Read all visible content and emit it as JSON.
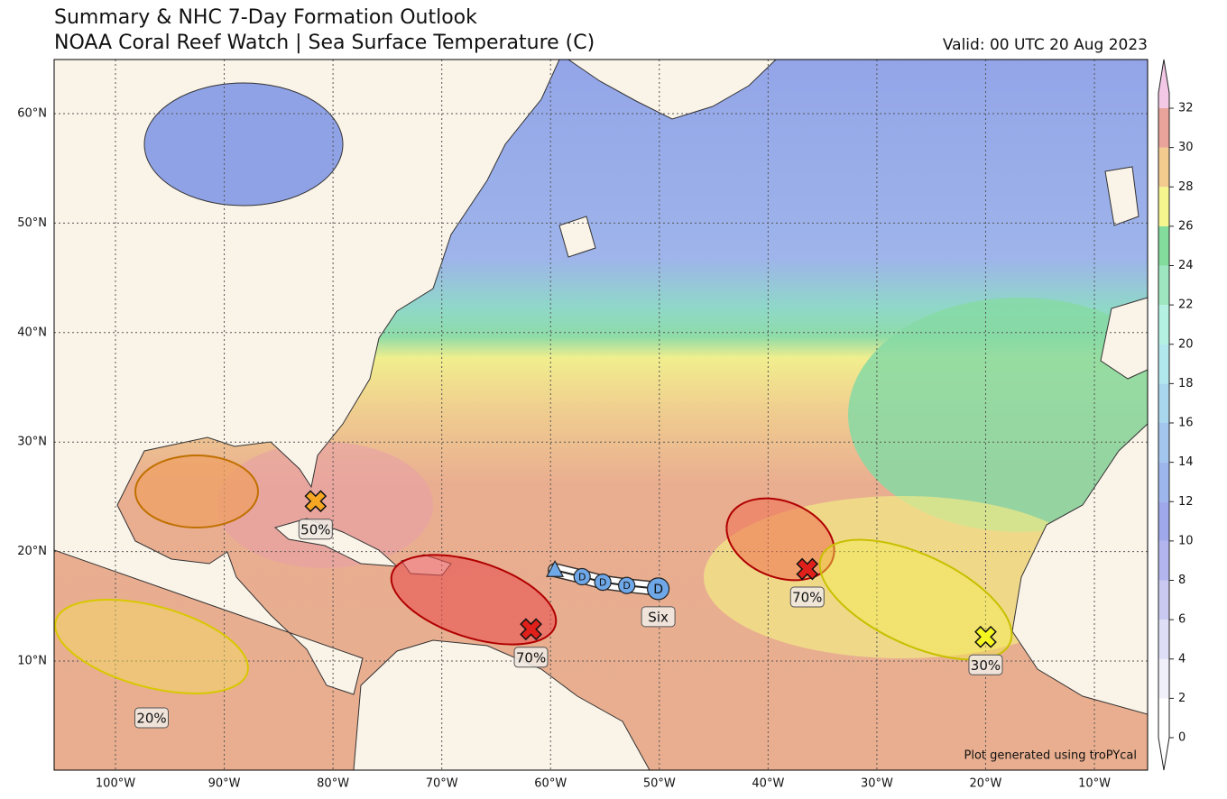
{
  "header": {
    "title": "Summary & NHC 7-Day Formation Outlook",
    "subtitle": "NOAA Coral Reef Watch | Sea Surface Temperature (C)",
    "valid": "Valid: 00 UTC 20 Aug 2023"
  },
  "map": {
    "lat_ticks": [
      {
        "value": 10,
        "label": "10°N"
      },
      {
        "value": 20,
        "label": "20°N"
      },
      {
        "value": 30,
        "label": "30°N"
      },
      {
        "value": 40,
        "label": "40°N"
      },
      {
        "value": 50,
        "label": "50°N"
      },
      {
        "value": 60,
        "label": "60°N"
      }
    ],
    "lon_ticks": [
      {
        "value": -100,
        "label": "100°W"
      },
      {
        "value": -90,
        "label": "90°W"
      },
      {
        "value": -80,
        "label": "80°W"
      },
      {
        "value": -70,
        "label": "70°W"
      },
      {
        "value": -60,
        "label": "60°W"
      },
      {
        "value": -50,
        "label": "50°W"
      },
      {
        "value": -40,
        "label": "40°W"
      },
      {
        "value": -30,
        "label": "30°W"
      },
      {
        "value": -20,
        "label": "20°W"
      },
      {
        "value": -10,
        "label": "10°W"
      }
    ],
    "grid": true
  },
  "colorbar": {
    "ticks": [
      0,
      2,
      4,
      6,
      8,
      10,
      12,
      14,
      16,
      18,
      20,
      22,
      24,
      26,
      28,
      30,
      32
    ],
    "colors": [
      "#ffffff",
      "#f0f0fb",
      "#dedef6",
      "#c9c9f1",
      "#b3b5ee",
      "#9ea8ea",
      "#9db6eb",
      "#a2c6ed",
      "#a9d7ee",
      "#b0e8ee",
      "#b4f1e2",
      "#9ee6c0",
      "#84dc9c",
      "#f6f68e",
      "#f3cb8f",
      "#e9a39a"
    ],
    "over": "#f3c8e6",
    "under": "#ffffff"
  },
  "outlooks": [
    {
      "label": "50%",
      "color": "#f5a623",
      "marker": {
        "lon": -81.6,
        "lat": 24.6
      }
    },
    {
      "label": "70%",
      "color": "#e0201a",
      "marker": {
        "lon": -61.8,
        "lat": 12.9
      }
    },
    {
      "label": "70%",
      "color": "#e0201a",
      "marker": {
        "lon": -36.4,
        "lat": 18.4
      }
    },
    {
      "label": "30%",
      "color": "#f5f520",
      "marker": {
        "lon": -20.0,
        "lat": 12.2
      }
    },
    {
      "label": "20%",
      "color": "#f5f520"
    }
  ],
  "storm": {
    "name": "Six",
    "track": [
      {
        "lon": -59.6,
        "lat": 18.3
      },
      {
        "lon": -57.1,
        "lat": 17.7,
        "label": "D"
      },
      {
        "lon": -55.2,
        "lat": 17.2,
        "label": "D"
      },
      {
        "lon": -53.0,
        "lat": 16.9,
        "label": "D"
      },
      {
        "lon": -50.1,
        "lat": 16.6,
        "label": "D"
      }
    ]
  },
  "credit": "Plot generated using troPYcal"
}
